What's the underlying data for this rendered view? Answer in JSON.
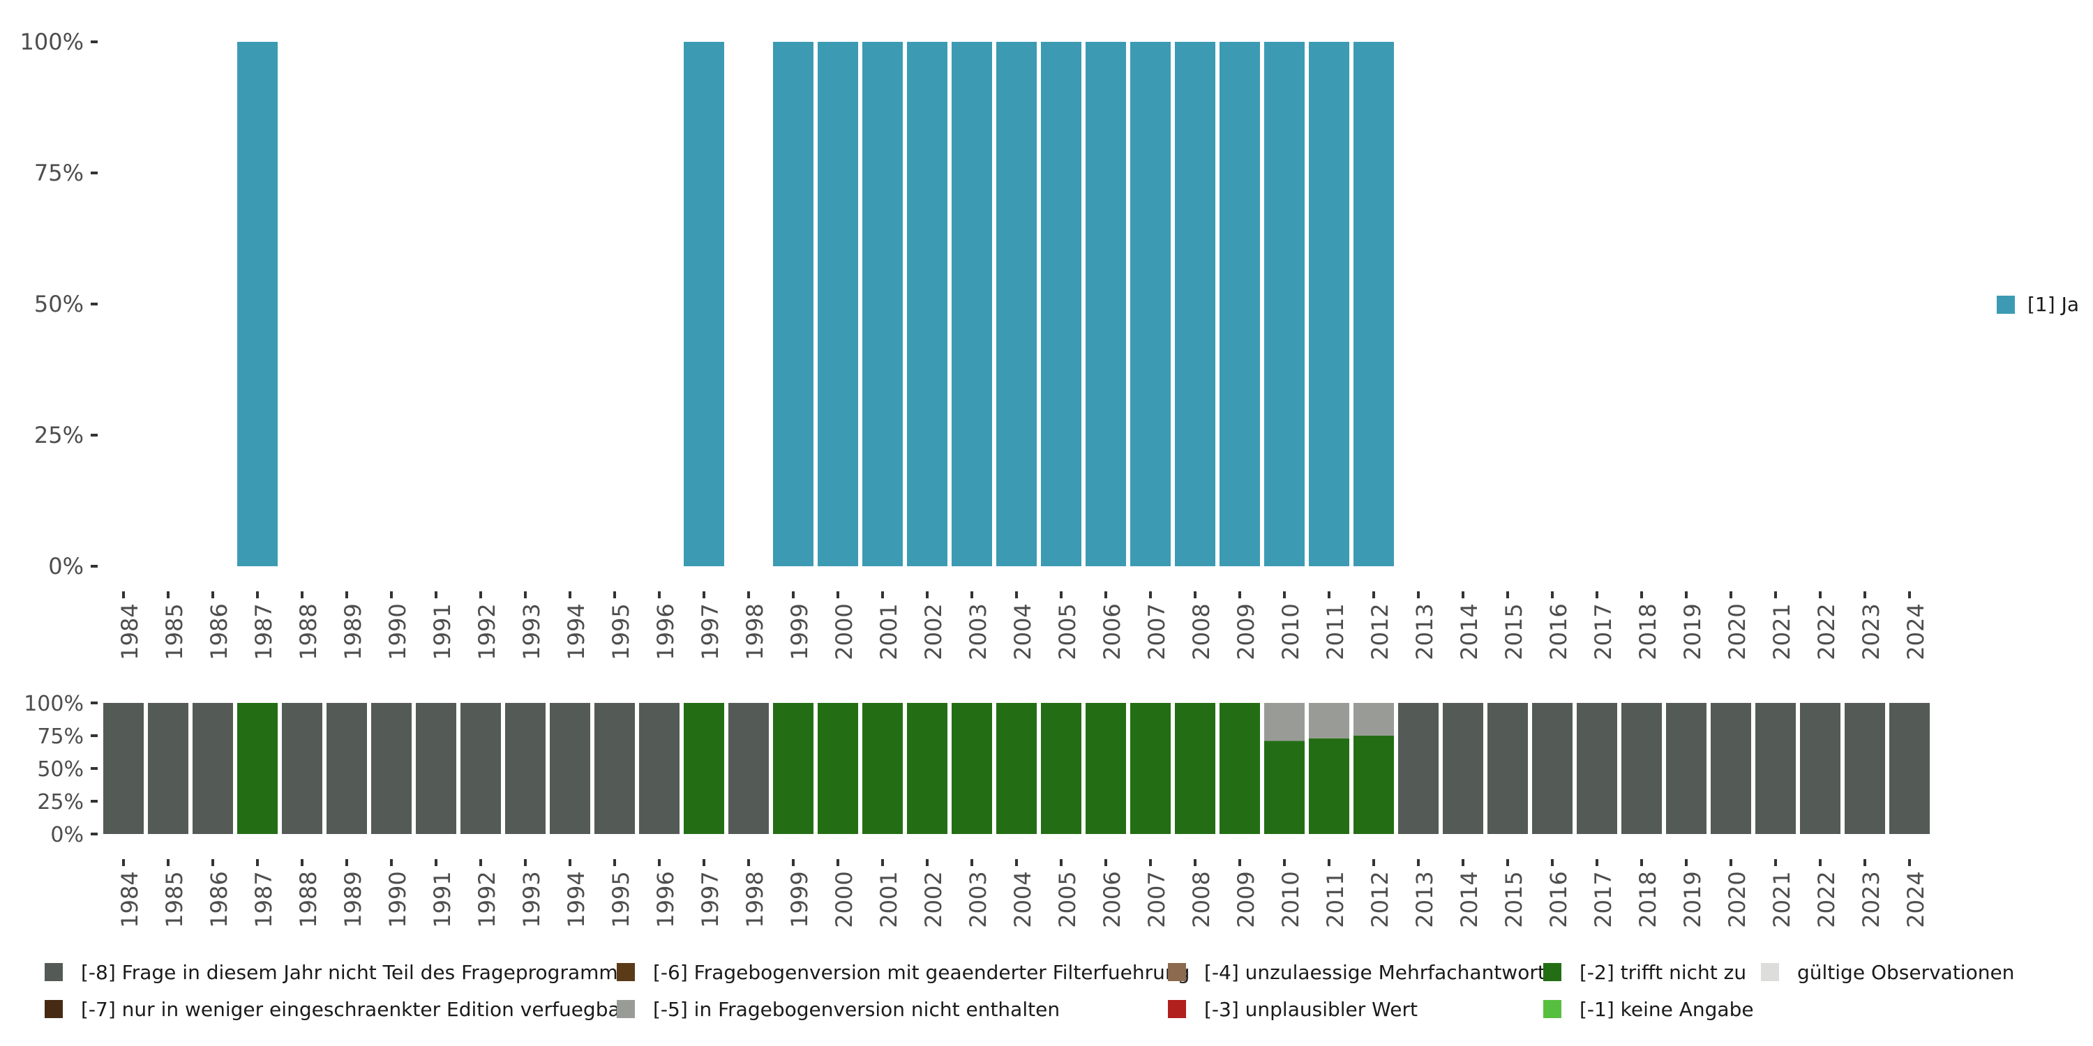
{
  "colors": {
    "ja": "#3c9bb3",
    "not_in_program": "#545b56",
    "filter_version": "#5a3a17",
    "weak_edition": "#472a14",
    "not_in_version": "#999c96",
    "multi_answer": "#8c6a4f",
    "implausible": "#b1201d",
    "not_applicable": "#236e14",
    "no_answer": "#57bf3f",
    "valid": "#dddedb"
  },
  "chart_data": [
    {
      "type": "bar",
      "stacked": true,
      "categories": [
        "1984",
        "1985",
        "1986",
        "1987",
        "1988",
        "1989",
        "1990",
        "1991",
        "1992",
        "1993",
        "1994",
        "1995",
        "1996",
        "1997",
        "1998",
        "1999",
        "2000",
        "2001",
        "2002",
        "2003",
        "2004",
        "2005",
        "2006",
        "2007",
        "2008",
        "2009",
        "2010",
        "2011",
        "2012",
        "2013",
        "2014",
        "2015",
        "2016",
        "2017",
        "2018",
        "2019",
        "2020",
        "2021",
        "2022",
        "2023",
        "2024"
      ],
      "ylim": [
        0,
        100
      ],
      "yticks": [
        "0%",
        "25%",
        "50%",
        "75%",
        "100%"
      ],
      "series": [
        {
          "name": "[1] Ja",
          "color_key": "ja",
          "values": [
            0,
            0,
            0,
            100,
            0,
            0,
            0,
            0,
            0,
            0,
            0,
            0,
            0,
            100,
            0,
            100,
            100,
            100,
            100,
            100,
            100,
            100,
            100,
            100,
            100,
            100,
            100,
            100,
            100,
            0,
            0,
            0,
            0,
            0,
            0,
            0,
            0,
            0,
            0,
            0,
            0
          ]
        }
      ],
      "legend": [
        {
          "label": "[1] Ja",
          "color_key": "ja"
        }
      ]
    },
    {
      "type": "bar",
      "stacked": true,
      "categories": [
        "1984",
        "1985",
        "1986",
        "1987",
        "1988",
        "1989",
        "1990",
        "1991",
        "1992",
        "1993",
        "1994",
        "1995",
        "1996",
        "1997",
        "1998",
        "1999",
        "2000",
        "2001",
        "2002",
        "2003",
        "2004",
        "2005",
        "2006",
        "2007",
        "2008",
        "2009",
        "2010",
        "2011",
        "2012",
        "2013",
        "2014",
        "2015",
        "2016",
        "2017",
        "2018",
        "2019",
        "2020",
        "2021",
        "2022",
        "2023",
        "2024"
      ],
      "ylim": [
        0,
        100
      ],
      "yticks": [
        "0%",
        "25%",
        "50%",
        "75%",
        "100%"
      ],
      "series": [
        {
          "name": "[-2] trifft nicht zu",
          "color_key": "not_applicable",
          "values": [
            0,
            0,
            0,
            100,
            0,
            0,
            0,
            0,
            0,
            0,
            0,
            0,
            0,
            100,
            0,
            100,
            100,
            100,
            100,
            100,
            100,
            100,
            100,
            100,
            100,
            100,
            71,
            73,
            75,
            0,
            0,
            0,
            0,
            0,
            0,
            0,
            0,
            0,
            0,
            0,
            0
          ]
        },
        {
          "name": "[-5] in Fragebogenversion nicht enthalten",
          "color_key": "not_in_version",
          "values": [
            0,
            0,
            0,
            0,
            0,
            0,
            0,
            0,
            0,
            0,
            0,
            0,
            0,
            0,
            0,
            0,
            0,
            0,
            0,
            0,
            0,
            0,
            0,
            0,
            0,
            0,
            29,
            27,
            25,
            0,
            0,
            0,
            0,
            0,
            0,
            0,
            0,
            0,
            0,
            0,
            0
          ]
        },
        {
          "name": "[-8] Frage in diesem Jahr nicht Teil des Frageprogramms",
          "color_key": "not_in_program",
          "values": [
            100,
            100,
            100,
            0,
            100,
            100,
            100,
            100,
            100,
            100,
            100,
            100,
            100,
            0,
            100,
            0,
            0,
            0,
            0,
            0,
            0,
            0,
            0,
            0,
            0,
            0,
            0,
            0,
            0,
            100,
            100,
            100,
            100,
            100,
            100,
            100,
            100,
            100,
            100,
            100,
            100
          ]
        }
      ],
      "legend": [
        {
          "label": "[-8] Frage in diesem Jahr nicht Teil des Frageprogramms",
          "color_key": "not_in_program"
        },
        {
          "label": "[-6] Fragebogenversion mit geaenderter Filterfuehrung",
          "color_key": "filter_version"
        },
        {
          "label": "[-4] unzulaessige Mehrfachantwort",
          "color_key": "multi_answer"
        },
        {
          "label": "[-2] trifft nicht zu",
          "color_key": "not_applicable"
        },
        {
          "label": "gültige Observationen",
          "color_key": "valid"
        },
        {
          "label": "[-7] nur in weniger eingeschraenkter Edition verfuegbar",
          "color_key": "weak_edition"
        },
        {
          "label": "[-5] in Fragebogenversion nicht enthalten",
          "color_key": "not_in_version"
        },
        {
          "label": "[-3] unplausibler Wert",
          "color_key": "implausible"
        },
        {
          "label": "[-1] keine Angabe",
          "color_key": "no_answer"
        }
      ]
    }
  ]
}
